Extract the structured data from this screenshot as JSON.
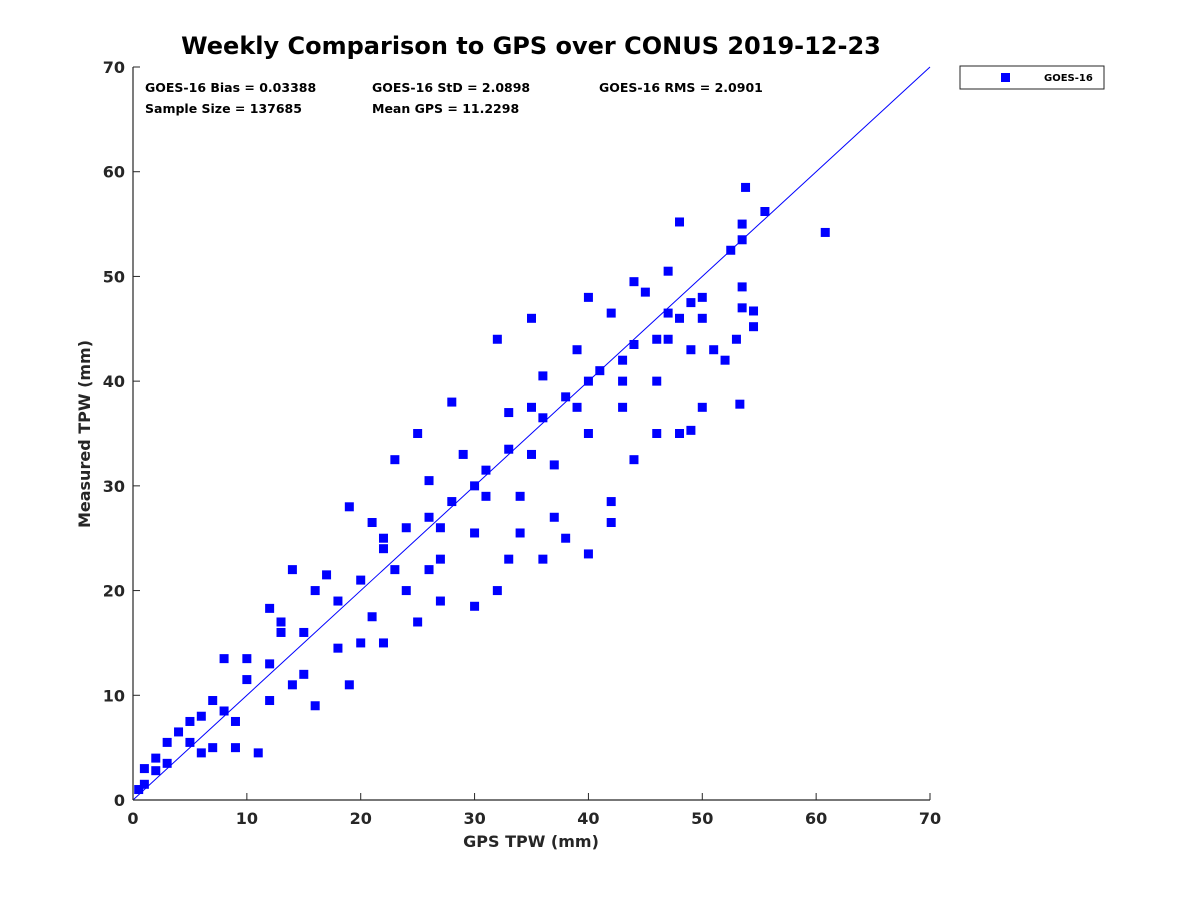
{
  "chart_data": {
    "type": "scatter",
    "title": "Weekly Comparison to GPS over CONUS 2019-12-23",
    "xlabel": "GPS TPW (mm)",
    "ylabel": "Measured TPW (mm)",
    "xlim": [
      0,
      70
    ],
    "ylim": [
      0,
      70
    ],
    "xticks": [
      0,
      10,
      20,
      30,
      40,
      50,
      60,
      70
    ],
    "yticks": [
      0,
      10,
      20,
      30,
      40,
      50,
      60,
      70
    ],
    "grid": false,
    "legend_position": "outside-top-right",
    "stats": [
      {
        "text": "GOES-16 Bias = 0.03388"
      },
      {
        "text": "GOES-16 StD = 2.0898"
      },
      {
        "text": "GOES-16 RMS = 2.0901"
      },
      {
        "text": "Sample Size = 137685"
      },
      {
        "text": "Mean GPS = 11.2298"
      }
    ],
    "reference_line": {
      "x": [
        0,
        70
      ],
      "y": [
        0,
        70
      ],
      "color": "#0000ff"
    },
    "series": [
      {
        "name": "GOES-16",
        "color": "#0000ff",
        "marker": "square",
        "points": [
          [
            1,
            1.5
          ],
          [
            2,
            2.8
          ],
          [
            3,
            3.5
          ],
          [
            5,
            5.5
          ],
          [
            8,
            8.5
          ],
          [
            12,
            13
          ],
          [
            15,
            16
          ],
          [
            18,
            19
          ],
          [
            22,
            24
          ],
          [
            24,
            26
          ],
          [
            28,
            28.5
          ],
          [
            30,
            30
          ],
          [
            33,
            33.5
          ],
          [
            36,
            36.5
          ],
          [
            40,
            40
          ],
          [
            43,
            42
          ],
          [
            46,
            44
          ],
          [
            48,
            46
          ],
          [
            50,
            48
          ],
          [
            8,
            13.5
          ],
          [
            12,
            18.3
          ],
          [
            14,
            22
          ],
          [
            19,
            28
          ],
          [
            23,
            32.5
          ],
          [
            25,
            35
          ],
          [
            28,
            38
          ],
          [
            32,
            44
          ],
          [
            35,
            46
          ],
          [
            40,
            48
          ],
          [
            44,
            49.5
          ],
          [
            47,
            50.5
          ],
          [
            19,
            11
          ],
          [
            22,
            15
          ],
          [
            25,
            17
          ],
          [
            26,
            22
          ],
          [
            27,
            19
          ],
          [
            30,
            18.5
          ],
          [
            32,
            20
          ],
          [
            33,
            23
          ],
          [
            36,
            23
          ],
          [
            38,
            25
          ],
          [
            40,
            23.5
          ],
          [
            42,
            26.5
          ],
          [
            42,
            28.5
          ],
          [
            44,
            32.5
          ],
          [
            46,
            35
          ],
          [
            48,
            35
          ],
          [
            50,
            37.5
          ],
          [
            52,
            42
          ],
          [
            51,
            43
          ],
          [
            53,
            44
          ],
          [
            53.5,
            47
          ],
          [
            53.5,
            49
          ],
          [
            52.5,
            52.5
          ],
          [
            53.5,
            53.5
          ],
          [
            53.5,
            55
          ],
          [
            53.8,
            58.5
          ],
          [
            55.5,
            56.2
          ],
          [
            48,
            55.2
          ],
          [
            60.8,
            54.2
          ],
          [
            54.5,
            46.7
          ],
          [
            54.5,
            45.2
          ],
          [
            53.3,
            37.8
          ],
          [
            49,
            35.3
          ],
          [
            11,
            4.5
          ],
          [
            9,
            5
          ],
          [
            16,
            9
          ],
          [
            20,
            15
          ],
          [
            34,
            25.5
          ],
          [
            37,
            27
          ],
          [
            22,
            25
          ],
          [
            17,
            21.5
          ],
          [
            13,
            17
          ],
          [
            6,
            8
          ],
          [
            4,
            6.5
          ],
          [
            10,
            11.5
          ],
          [
            20,
            21
          ],
          [
            26,
            27
          ],
          [
            31,
            31.5
          ],
          [
            35,
            37.5
          ],
          [
            38,
            38.5
          ],
          [
            41,
            41
          ],
          [
            44,
            43.5
          ],
          [
            47,
            46.5
          ],
          [
            49,
            47.5
          ],
          [
            45,
            48.5
          ],
          [
            42,
            46.5
          ],
          [
            39,
            43
          ],
          [
            36,
            40.5
          ],
          [
            33,
            37
          ],
          [
            29,
            33
          ],
          [
            26,
            30.5
          ],
          [
            21,
            26.5
          ],
          [
            16,
            20
          ],
          [
            13,
            16
          ],
          [
            10,
            13.5
          ],
          [
            7,
            9.5
          ],
          [
            5,
            7.5
          ],
          [
            3,
            5.5
          ],
          [
            2,
            4
          ],
          [
            1,
            3
          ],
          [
            0.5,
            1
          ],
          [
            6,
            4.5
          ],
          [
            9,
            7.5
          ],
          [
            12,
            9.5
          ],
          [
            15,
            12
          ],
          [
            18,
            14.5
          ],
          [
            21,
            17.5
          ],
          [
            24,
            20
          ],
          [
            27,
            23
          ],
          [
            30,
            25.5
          ],
          [
            34,
            29
          ],
          [
            37,
            32
          ],
          [
            40,
            35
          ],
          [
            43,
            37.5
          ],
          [
            46,
            40
          ],
          [
            49,
            43
          ],
          [
            7,
            5
          ],
          [
            14,
            11
          ],
          [
            23,
            22
          ],
          [
            27,
            26
          ],
          [
            31,
            29
          ],
          [
            35,
            33
          ],
          [
            39,
            37.5
          ],
          [
            43,
            40
          ],
          [
            47,
            44
          ],
          [
            50,
            46
          ]
        ]
      }
    ]
  }
}
